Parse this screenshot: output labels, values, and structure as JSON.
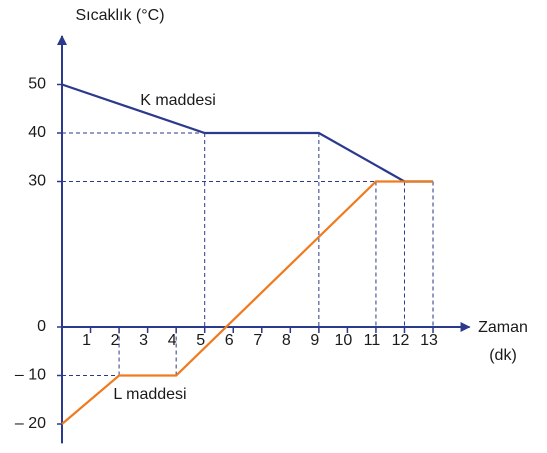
{
  "chart_data": {
    "type": "line",
    "ylabel": "Sıcaklık (°C)",
    "xlabel": [
      "Zaman",
      "(dk)"
    ],
    "series": [
      {
        "name": "K maddesi",
        "color": "#2b3a8c",
        "x": [
          0,
          5,
          9,
          12,
          13
        ],
        "values": [
          50,
          40,
          40,
          30,
          30
        ]
      },
      {
        "name": "L maddesi",
        "color": "#f07a1e",
        "x": [
          0,
          2,
          4,
          11,
          13
        ],
        "values": [
          -20,
          -10,
          -10,
          30,
          30
        ]
      }
    ],
    "xlim": [
      0,
      14
    ],
    "xticks": [
      1,
      2,
      3,
      4,
      5,
      6,
      7,
      8,
      9,
      10,
      11,
      12,
      13
    ],
    "ylim": [
      -24,
      60
    ],
    "yticks": [
      50,
      40,
      30,
      0,
      {
        "value": -10,
        "label": "– 10"
      },
      {
        "value": -20,
        "label": "– 20"
      }
    ],
    "axis_color": "#2b3a8c"
  }
}
